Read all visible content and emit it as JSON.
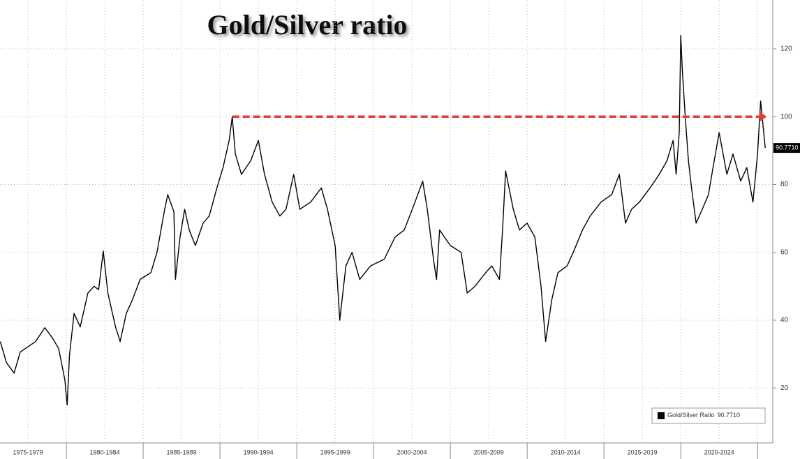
{
  "chart_data": {
    "type": "line",
    "title": "Gold/Silver ratio",
    "series": [
      {
        "name": "Gold/Silver Ratio",
        "color": "#000000",
        "last_value_label": "90.7710",
        "x": [
          1975.7,
          1976.1,
          1976.6,
          1977.0,
          1978.0,
          1978.6,
          1979.1,
          1979.5,
          1979.9,
          1980.05,
          1980.2,
          1980.5,
          1980.9,
          1981.4,
          1981.8,
          1982.1,
          1982.4,
          1982.7,
          1983.2,
          1983.5,
          1983.9,
          1984.3,
          1984.8,
          1985.5,
          1985.9,
          1986.4,
          1986.6,
          1987.0,
          1987.1,
          1987.4,
          1987.7,
          1988.0,
          1988.4,
          1988.9,
          1989.3,
          1989.8,
          1990.2,
          1990.6,
          1990.8,
          1991.0,
          1991.4,
          1992.0,
          1992.5,
          1992.9,
          1993.4,
          1993.9,
          1994.3,
          1994.8,
          1995.2,
          1995.9,
          1996.6,
          1997.0,
          1997.5,
          1997.8,
          1998.2,
          1998.6,
          1999.1,
          1999.8,
          2000.7,
          2001.4,
          2002.0,
          2002.7,
          2003.2,
          2003.5,
          2003.9,
          2004.1,
          2004.3,
          2005.0,
          2005.7,
          2006.1,
          2006.6,
          2007.3,
          2007.7,
          2008.2,
          2008.4,
          2008.6,
          2009.1,
          2009.5,
          2010.0,
          2010.5,
          2010.9,
          2011.2,
          2011.6,
          2012.0,
          2012.6,
          2013.0,
          2013.6,
          2014.1,
          2014.8,
          2015.5,
          2016.0,
          2016.4,
          2016.8,
          2017.3,
          2018.0,
          2018.6,
          2019.1,
          2019.5,
          2019.7,
          2019.9,
          2020.0,
          2020.1,
          2020.3,
          2020.5,
          2020.7,
          2021.0,
          2021.4,
          2021.8,
          2022.1,
          2022.5,
          2023.0,
          2023.4,
          2023.9,
          2024.3,
          2024.7,
          2025.0,
          2025.2,
          2025.5
        ],
        "values": [
          33.7,
          27.5,
          24.4,
          30.6,
          33.7,
          37.8,
          34.7,
          31.6,
          22.4,
          15,
          29.6,
          42,
          38,
          48,
          50,
          49,
          60.4,
          48,
          38,
          33.7,
          42,
          46,
          52,
          54,
          60,
          72.7,
          77,
          72,
          52,
          64.5,
          72.7,
          66.6,
          62,
          68.6,
          70.7,
          79,
          85,
          93,
          100,
          89,
          83,
          87,
          93,
          83,
          74.8,
          70.7,
          72.7,
          83,
          72.7,
          74.8,
          79,
          72.7,
          62,
          40,
          56,
          60,
          52,
          56,
          58,
          64.5,
          66.6,
          74.8,
          81,
          72.7,
          58,
          52,
          66.6,
          62,
          60,
          48,
          50,
          54,
          56,
          52,
          66.6,
          84,
          72.7,
          66.6,
          68.6,
          64.5,
          50,
          33.7,
          46,
          54,
          56,
          60,
          66.6,
          70.7,
          74.8,
          77,
          83,
          68.6,
          72.7,
          74.8,
          79,
          83,
          87,
          93,
          83,
          95.3,
          124,
          113.8,
          99.4,
          87,
          79,
          68.6,
          72.7,
          77,
          85,
          95.3,
          83,
          89,
          81,
          85,
          74.8,
          89,
          104.6,
          90.771
        ]
      }
    ],
    "reference_line": {
      "value": 100,
      "x": [
        1990.8,
        2025.6
      ],
      "color": "#e0403a"
    },
    "xlim": [
      1975.68,
      2025.9
    ],
    "xticks": [
      {
        "value": 1977.5,
        "label": "1975-1979"
      },
      {
        "value": 1982.5,
        "label": "1980-1984"
      },
      {
        "value": 1987.5,
        "label": "1985-1989"
      },
      {
        "value": 1992.5,
        "label": "1990-1994"
      },
      {
        "value": 1997.5,
        "label": "1995-1999"
      },
      {
        "value": 2002.5,
        "label": "2000-2004"
      },
      {
        "value": 2007.5,
        "label": "2005-2009"
      },
      {
        "value": 2012.5,
        "label": "2010-2014"
      },
      {
        "value": 2017.5,
        "label": "2015-2019"
      },
      {
        "value": 2022.5,
        "label": "2020-2024"
      }
    ],
    "x_separators": [
      1980,
      1985,
      1990,
      1995,
      2000,
      2005,
      2010,
      2015,
      2020,
      2025
    ],
    "ylim": [
      3.8,
      134.4
    ],
    "yticks": [
      20,
      40,
      60,
      80,
      100,
      120
    ],
    "grid": true,
    "legend": "lower right"
  }
}
